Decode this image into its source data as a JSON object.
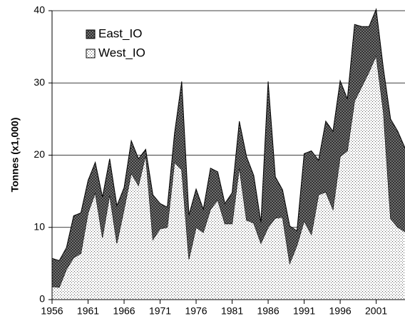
{
  "chart_data": {
    "type": "stacked_area",
    "ylabel": "Tonnes (x1,000)",
    "x": [
      1956,
      1957,
      1958,
      1959,
      1960,
      1961,
      1962,
      1963,
      1964,
      1965,
      1966,
      1967,
      1968,
      1969,
      1970,
      1971,
      1972,
      1973,
      1974,
      1975,
      1976,
      1977,
      1978,
      1979,
      1980,
      1981,
      1982,
      1983,
      1984,
      1985,
      1986,
      1987,
      1988,
      1989,
      1990,
      1991,
      1992,
      1993,
      1994,
      1995,
      1996,
      1997,
      1998,
      1999,
      2000,
      2001,
      2002,
      2003,
      2004,
      2005
    ],
    "series": [
      {
        "name": "West_IO",
        "color": "#ffffff",
        "values": [
          1.8,
          1.7,
          4.2,
          5.8,
          6.4,
          12.0,
          14.8,
          8.6,
          14.5,
          7.8,
          12.5,
          17.5,
          15.8,
          20.0,
          8.3,
          9.8,
          10.0,
          19.0,
          18.0,
          5.6,
          10.0,
          9.3,
          12.5,
          13.8,
          10.5,
          10.5,
          18.3,
          11.0,
          10.6,
          7.8,
          10.0,
          11.3,
          11.4,
          5.0,
          7.5,
          10.9,
          9.0,
          14.5,
          14.9,
          12.5,
          19.8,
          20.6,
          27.5,
          29.5,
          31.5,
          33.8,
          26.0,
          11.2,
          10.0,
          9.4
        ]
      },
      {
        "name": "East_IO",
        "color": "#808080",
        "values": [
          3.9,
          3.7,
          3.0,
          5.8,
          5.6,
          4.5,
          4.2,
          5.6,
          5.0,
          5.2,
          3.0,
          4.5,
          3.7,
          0.8,
          6.2,
          3.5,
          2.8,
          4.0,
          12.2,
          6.1,
          5.3,
          3.2,
          5.7,
          3.9,
          2.8,
          4.3,
          6.4,
          8.8,
          6.6,
          2.9,
          20.2,
          5.7,
          3.8,
          5.2,
          2.0,
          9.3,
          11.6,
          4.8,
          9.8,
          10.8,
          10.5,
          7.2,
          10.6,
          8.3,
          6.3,
          6.4,
          6.0,
          13.8,
          13.3,
          11.6
        ]
      }
    ],
    "xlim": [
      1956,
      2005
    ],
    "xticks": [
      1956,
      1961,
      1966,
      1971,
      1976,
      1981,
      1986,
      1991,
      1996,
      2001
    ],
    "ylim": [
      0,
      40
    ],
    "yticks": [
      0,
      10,
      20,
      30,
      40
    ],
    "grid": true,
    "legend": "upper left"
  }
}
